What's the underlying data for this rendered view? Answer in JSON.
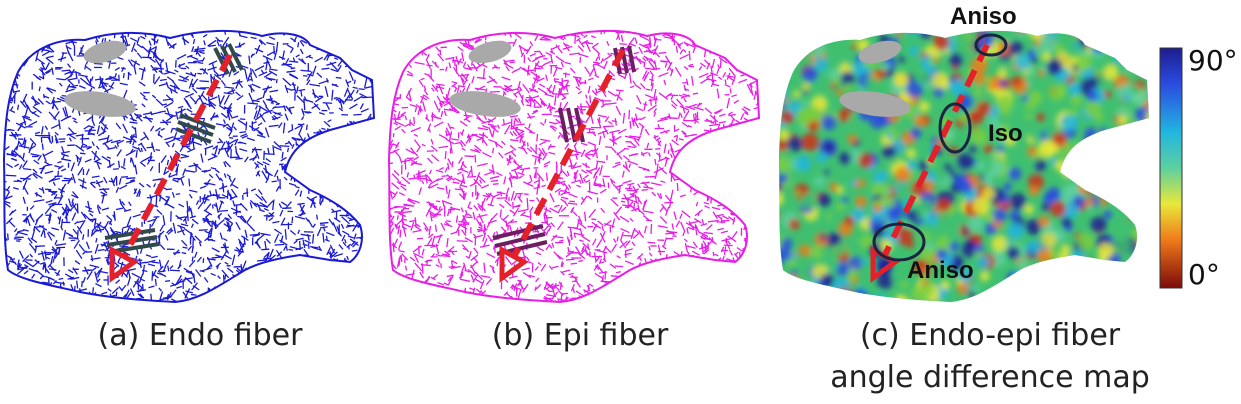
{
  "panels": {
    "a": {
      "caption": "(a) Endo fiber",
      "fiber_color": "#1a1ad6"
    },
    "b": {
      "caption": "(b) Epi fiber",
      "fiber_color": "#e81ee8"
    },
    "c": {
      "caption_line1": "(c) Endo-epi fiber",
      "caption_line2": "angle difference map"
    }
  },
  "annotations": {
    "top": "Aniso",
    "mid": "Iso",
    "bottom": "Aniso"
  },
  "colorbar": {
    "max_label": "90°",
    "min_label": "0°"
  },
  "colors": {
    "arrow": "#e4202a",
    "stripe_dark": "#2f4a48",
    "stripe_purple": "#6a2060",
    "valve": "#a9a9a9"
  }
}
